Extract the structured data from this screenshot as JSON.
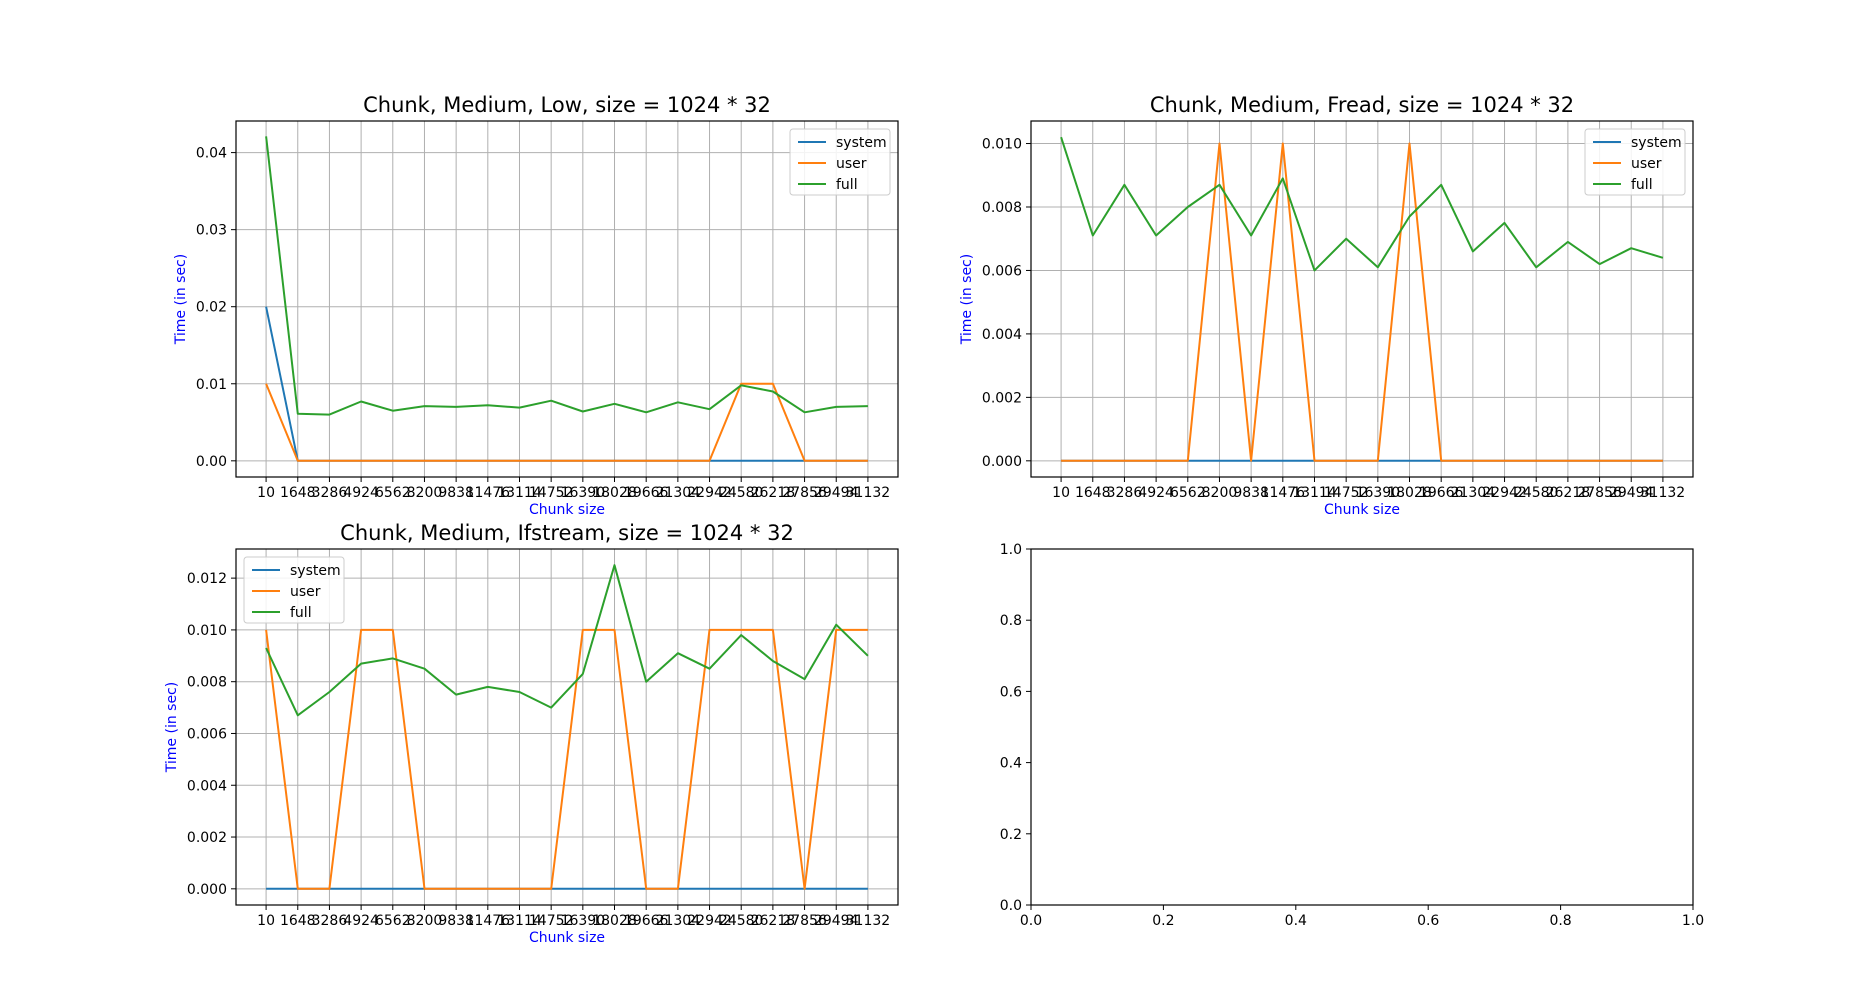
{
  "chart_data": [
    {
      "type": "line",
      "title": "Chunk, Medium, Low, size = 1024 * 32",
      "xlabel": "Chunk size",
      "ylabel": "Time (in sec)",
      "ylim": [
        -0.0021,
        0.0441
      ],
      "yticks": [
        "0.00",
        "0.01",
        "0.02",
        "0.03",
        "0.04"
      ],
      "ytick_values": [
        0,
        0.01,
        0.02,
        0.03,
        0.04
      ],
      "grid": true,
      "legend_position": "top-right",
      "x": [
        "10",
        "1648",
        "3286",
        "4924",
        "6562",
        "8200",
        "9838",
        "11476",
        "13114",
        "14752",
        "16390",
        "18028",
        "19666",
        "21304",
        "22942",
        "24580",
        "26218",
        "27856",
        "29494",
        "31132"
      ],
      "series": [
        {
          "name": "system",
          "color": "#1f77b4",
          "values": [
            0.02,
            0,
            0,
            0,
            0,
            0,
            0,
            0,
            0,
            0,
            0,
            0,
            0,
            0,
            0,
            0,
            0,
            0,
            0,
            0
          ]
        },
        {
          "name": "user",
          "color": "#ff7f0e",
          "values": [
            0.01,
            0,
            0,
            0,
            0,
            0,
            0,
            0,
            0,
            0,
            0,
            0,
            0,
            0,
            0,
            0.01,
            0.01,
            0,
            0,
            0
          ]
        },
        {
          "name": "full",
          "color": "#2ca02c",
          "values": [
            0.0421,
            0.0061,
            0.006,
            0.0077,
            0.0065,
            0.0071,
            0.007,
            0.0072,
            0.0069,
            0.0078,
            0.0064,
            0.0074,
            0.0063,
            0.0076,
            0.0067,
            0.0098,
            0.009,
            0.0063,
            0.007,
            0.0071
          ]
        }
      ]
    },
    {
      "type": "line",
      "title": "Chunk, Medium, Fread, size = 1024 * 32",
      "xlabel": "Chunk size",
      "ylabel": "Time (in sec)",
      "ylim": [
        -0.00051,
        0.01071
      ],
      "yticks": [
        "0.000",
        "0.002",
        "0.004",
        "0.006",
        "0.008",
        "0.010"
      ],
      "ytick_values": [
        0,
        0.002,
        0.004,
        0.006,
        0.008,
        0.01
      ],
      "grid": true,
      "legend_position": "top-right",
      "x": [
        "10",
        "1648",
        "3286",
        "4924",
        "6562",
        "8200",
        "9838",
        "11476",
        "13114",
        "14752",
        "16390",
        "18028",
        "19666",
        "21304",
        "22942",
        "24580",
        "26218",
        "27856",
        "29494",
        "31132"
      ],
      "series": [
        {
          "name": "system",
          "color": "#1f77b4",
          "values": [
            0,
            0,
            0,
            0,
            0,
            0,
            0,
            0,
            0,
            0,
            0,
            0,
            0,
            0,
            0,
            0,
            0,
            0,
            0,
            0
          ]
        },
        {
          "name": "user",
          "color": "#ff7f0e",
          "values": [
            0,
            0,
            0,
            0,
            0,
            0.01,
            0,
            0.01,
            0,
            0,
            0,
            0.01,
            0,
            0,
            0,
            0,
            0,
            0,
            0,
            0
          ]
        },
        {
          "name": "full",
          "color": "#2ca02c",
          "values": [
            0.0102,
            0.0071,
            0.0087,
            0.0071,
            0.008,
            0.0087,
            0.0071,
            0.0089,
            0.006,
            0.007,
            0.0061,
            0.0077,
            0.0087,
            0.0066,
            0.0075,
            0.0061,
            0.0069,
            0.0062,
            0.0067,
            0.0064
          ]
        }
      ]
    },
    {
      "type": "line",
      "title": "Chunk, Medium, Ifstream, size = 1024 * 32",
      "xlabel": "Chunk size",
      "ylabel": "Time (in sec)",
      "ylim": [
        -0.000625,
        0.013125
      ],
      "yticks": [
        "0.000",
        "0.002",
        "0.004",
        "0.006",
        "0.008",
        "0.010",
        "0.012"
      ],
      "ytick_values": [
        0,
        0.002,
        0.004,
        0.006,
        0.008,
        0.01,
        0.012
      ],
      "grid": true,
      "legend_position": "top-left",
      "x": [
        "10",
        "1648",
        "3286",
        "4924",
        "6562",
        "8200",
        "9838",
        "11476",
        "13114",
        "14752",
        "16390",
        "18028",
        "19666",
        "21304",
        "22942",
        "24580",
        "26218",
        "27856",
        "29494",
        "31132"
      ],
      "series": [
        {
          "name": "system",
          "color": "#1f77b4",
          "values": [
            0,
            0,
            0,
            0,
            0,
            0,
            0,
            0,
            0,
            0,
            0,
            0,
            0,
            0,
            0,
            0,
            0,
            0,
            0,
            0
          ]
        },
        {
          "name": "user",
          "color": "#ff7f0e",
          "values": [
            0.01,
            0,
            0,
            0.01,
            0.01,
            0,
            0,
            0,
            0,
            0,
            0.01,
            0.01,
            0,
            0,
            0.01,
            0.01,
            0.01,
            0,
            0.01,
            0.01
          ]
        },
        {
          "name": "full",
          "color": "#2ca02c",
          "values": [
            0.0093,
            0.0067,
            0.0076,
            0.0087,
            0.0089,
            0.0085,
            0.0075,
            0.0078,
            0.0076,
            0.007,
            0.0083,
            0.0125,
            0.008,
            0.0091,
            0.0085,
            0.0098,
            0.0088,
            0.0081,
            0.0102,
            0.009
          ]
        }
      ]
    },
    {
      "type": "line",
      "title": "",
      "xlim": [
        0,
        1
      ],
      "ylim": [
        0,
        1
      ],
      "xticks": [
        "0.0",
        "0.2",
        "0.4",
        "0.6",
        "0.8",
        "1.0"
      ],
      "xtick_values": [
        0,
        0.2,
        0.4,
        0.6,
        0.8,
        1
      ],
      "yticks": [
        "0.0",
        "0.2",
        "0.4",
        "0.6",
        "0.8",
        "1.0"
      ],
      "ytick_values": [
        0,
        0.2,
        0.4,
        0.6,
        0.8,
        1
      ],
      "grid": false,
      "series": []
    }
  ]
}
